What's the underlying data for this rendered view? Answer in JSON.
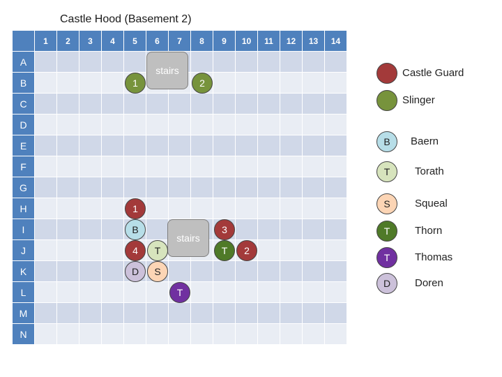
{
  "title": "Castle Hood (Basement 2)",
  "columns": [
    "1",
    "2",
    "3",
    "4",
    "5",
    "6",
    "7",
    "8",
    "9",
    "10",
    "11",
    "12",
    "13",
    "14"
  ],
  "rows": [
    "A",
    "B",
    "C",
    "D",
    "E",
    "F",
    "G",
    "H",
    "I",
    "J",
    "K",
    "L",
    "M",
    "N"
  ],
  "stairs": [
    {
      "label": "stairs"
    },
    {
      "label": "stairs"
    }
  ],
  "tokens": [
    {
      "label": "1",
      "kind": "slinger",
      "col": 5,
      "row": "B"
    },
    {
      "label": "2",
      "kind": "slinger",
      "col": 8,
      "row": "B"
    },
    {
      "label": "1",
      "kind": "castle-guard",
      "col": 5,
      "row": "H"
    },
    {
      "label": "B",
      "kind": "baern",
      "col": 5,
      "row": "I"
    },
    {
      "label": "3",
      "kind": "castle-guard",
      "col": 9,
      "row": "I"
    },
    {
      "label": "4",
      "kind": "castle-guard",
      "col": 5,
      "row": "J"
    },
    {
      "label": "T",
      "kind": "torath",
      "col": 6,
      "row": "J"
    },
    {
      "label": "T",
      "kind": "thorn",
      "col": 9,
      "row": "J"
    },
    {
      "label": "2",
      "kind": "castle-guard",
      "col": 10,
      "row": "J"
    },
    {
      "label": "D",
      "kind": "doren",
      "col": 5,
      "row": "K"
    },
    {
      "label": "S",
      "kind": "squeal",
      "col": 6,
      "row": "K"
    },
    {
      "label": "T",
      "kind": "thomas",
      "col": 7,
      "row": "L"
    }
  ],
  "legend": [
    {
      "name": "Castle Guard",
      "symbol": "",
      "color": "#a33a3a"
    },
    {
      "name": "Slinger",
      "symbol": "",
      "color": "#77933c"
    },
    {
      "name": "Baern",
      "symbol": "B",
      "color": "#b7dee8"
    },
    {
      "name": "Torath",
      "symbol": "T",
      "color": "#d7e4bd"
    },
    {
      "name": "Squeal",
      "symbol": "S",
      "color": "#fcd5b5"
    },
    {
      "name": "Thorn",
      "symbol": "T",
      "color": "#4f7a28"
    },
    {
      "name": "Thomas",
      "symbol": "T",
      "color": "#7030a0"
    },
    {
      "name": "Doren",
      "symbol": "D",
      "color": "#ccc1da"
    }
  ],
  "token_colors": {
    "castle-guard": "#a33a3a",
    "slinger": "#77933c",
    "baern": "#b7dee8",
    "torath": "#d7e4bd",
    "squeal": "#fcd5b5",
    "thorn": "#4f7a28",
    "thomas": "#7030a0",
    "doren": "#ccc1da"
  },
  "grid_colors": {
    "header": "#4f81bd",
    "band_dark": "#d0d8e8",
    "band_light": "#e9edf4"
  }
}
